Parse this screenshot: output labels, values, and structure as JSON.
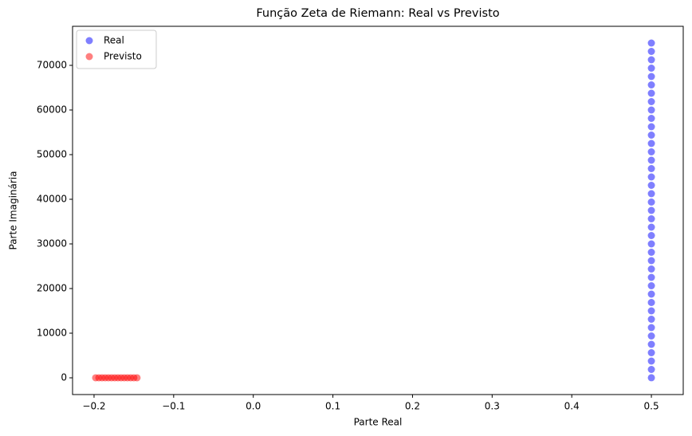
{
  "chart_data": {
    "type": "scatter",
    "title": "Função Zeta de Riemann: Real vs Previsto",
    "x_label": "Parte Real",
    "y_label": "Parte Imaginária",
    "legend": "upper left",
    "grid": false,
    "xlim": [
      -0.227,
      0.54
    ],
    "ylim": [
      -3750,
      78750
    ],
    "xticks": [
      {
        "value": -0.2,
        "label": "−0.2"
      },
      {
        "value": -0.1,
        "label": "−0.1"
      },
      {
        "value": 0,
        "label": "0.0"
      },
      0.1,
      0.2,
      0.3,
      0.4,
      0.5
    ],
    "yticks": [
      0,
      10000,
      20000,
      30000,
      40000,
      50000,
      60000,
      70000
    ],
    "series": [
      {
        "name": "Real",
        "color": "#0000ff",
        "opacity": 0.5,
        "x": [
          0.5,
          0.5,
          0.5,
          0.5,
          0.5,
          0.5,
          0.5,
          0.5,
          0.5,
          0.5,
          0.5,
          0.5,
          0.5,
          0.5,
          0.5,
          0.5,
          0.5,
          0.5,
          0.5,
          0.5,
          0.5,
          0.5,
          0.5,
          0.5,
          0.5,
          0.5,
          0.5,
          0.5,
          0.5,
          0.5,
          0.5,
          0.5,
          0.5,
          0.5,
          0.5,
          0.5,
          0.5,
          0.5,
          0.5,
          0.5,
          0.5
        ],
        "values": [
          14,
          1875,
          3750,
          5625,
          7500,
          9375,
          11250,
          13125,
          15000,
          16875,
          18750,
          20625,
          22500,
          24375,
          26250,
          28125,
          30000,
          31875,
          33750,
          35625,
          37500,
          39375,
          41250,
          43125,
          45000,
          46875,
          48750,
          50625,
          52500,
          54375,
          56250,
          58125,
          60000,
          61875,
          63750,
          65625,
          67500,
          69375,
          71250,
          73125,
          75000
        ]
      },
      {
        "name": "Previsto",
        "color": "#ff0000",
        "opacity": 0.5,
        "x": [
          -0.198,
          -0.194,
          -0.19,
          -0.186,
          -0.182,
          -0.178,
          -0.174,
          -0.17,
          -0.166,
          -0.162,
          -0.158,
          -0.154,
          -0.15,
          -0.146
        ],
        "values": [
          10,
          10,
          10,
          10,
          10,
          10,
          10,
          10,
          10,
          10,
          10,
          10,
          10,
          10
        ]
      }
    ]
  }
}
